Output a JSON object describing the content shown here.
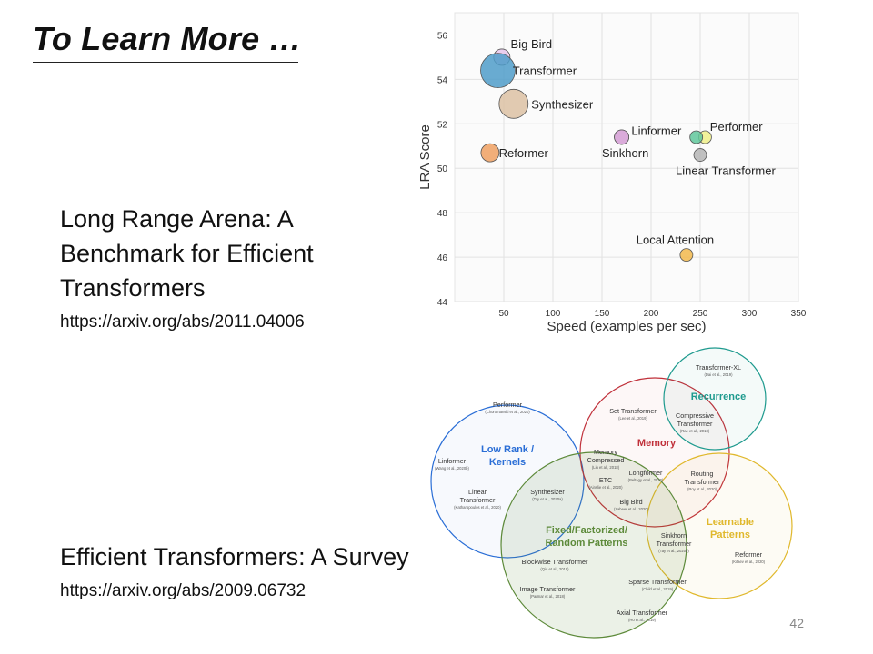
{
  "slide": {
    "title": "To Learn More …",
    "page_number": "42"
  },
  "paper1": {
    "title_lines": [
      "Long Range Arena: A",
      "Benchmark for Efficient",
      "Transformers"
    ],
    "url": "https://arxiv.org/abs/2011.04006"
  },
  "paper2": {
    "title": "Efficient Transformers: A Survey",
    "url": "https://arxiv.org/abs/2009.06732"
  },
  "chart_data": {
    "type": "scatter",
    "xlabel": "Speed (examples per sec)",
    "ylabel": "LRA Score",
    "xlim": [
      0,
      350
    ],
    "ylim": [
      44,
      57
    ],
    "xticks": [
      50,
      100,
      150,
      200,
      250,
      300,
      350
    ],
    "yticks": [
      44,
      46,
      48,
      50,
      52,
      54,
      56
    ],
    "grid": true,
    "points": [
      {
        "name": "Big Bird",
        "x": 48,
        "y": 55.0,
        "size": 9,
        "color": "#e6c7ec"
      },
      {
        "name": "Transformer",
        "x": 44,
        "y": 54.4,
        "size": 19,
        "color": "#4f9cc9"
      },
      {
        "name": "Synthesizer",
        "x": 60,
        "y": 52.9,
        "size": 16,
        "color": "#dcc1a3"
      },
      {
        "name": "Reformer",
        "x": 36,
        "y": 50.7,
        "size": 10,
        "color": "#eea062"
      },
      {
        "name": "Linformer",
        "x": 170,
        "y": 51.4,
        "size": 8,
        "color": "#d9a9d9"
      },
      {
        "name": "Sinkhorn",
        "x": 170,
        "y": 51.4,
        "size": 8,
        "color": "#d9a9d9"
      },
      {
        "name": "Performer",
        "x": 255,
        "y": 51.4,
        "size": 7,
        "color": "#eeee88"
      },
      {
        "name": "Performer",
        "x": 246,
        "y": 51.4,
        "size": 7,
        "color": "#5fc79b"
      },
      {
        "name": "Linear Transformer",
        "x": 250,
        "y": 50.6,
        "size": 7,
        "color": "#b5b5b5"
      },
      {
        "name": "Local Attention",
        "x": 236,
        "y": 46.1,
        "size": 7,
        "color": "#f2b84c"
      }
    ],
    "labels": [
      {
        "text": "Big Bird",
        "x": 57,
        "y": 55.6
      },
      {
        "text": "Transformer",
        "x": 59,
        "y": 54.4
      },
      {
        "text": "Synthesizer",
        "x": 78,
        "y": 52.9
      },
      {
        "text": "Reformer",
        "x": 45,
        "y": 50.7
      },
      {
        "text": "Linformer",
        "x": 180,
        "y": 51.7
      },
      {
        "text": "Sinkhorn",
        "x": 150,
        "y": 50.7
      },
      {
        "text": "Performer",
        "x": 260,
        "y": 51.9
      },
      {
        "text": "Linear Transformer",
        "x": 225,
        "y": 49.9
      },
      {
        "text": "Local Attention",
        "x": 185,
        "y": 46.8
      }
    ]
  },
  "venn": {
    "circles": {
      "low_rank": {
        "title_lines": [
          "Low Rank /",
          "Kernels"
        ],
        "color": "#2a6ed6"
      },
      "memory": {
        "title": "Memory",
        "color": "#c0303a"
      },
      "recurrence": {
        "title": "Recurrence",
        "color": "#1e9a8e"
      },
      "learnable": {
        "title_lines": [
          "Learnable",
          "Patterns"
        ],
        "color": "#e0b82c"
      },
      "fixed": {
        "title_lines": [
          "Fixed/Factorized/",
          "Random Patterns"
        ],
        "color": "#5d8a3a"
      }
    },
    "items": [
      {
        "name": "Performer",
        "cite": "(Choromanski et al., 2020)"
      },
      {
        "name": "Linformer",
        "cite": "(Wang et al., 2020b)"
      },
      {
        "name": "Linear Transformer",
        "cite": "(Katharopoulos et al., 2020)"
      },
      {
        "name": "Synthesizer",
        "cite": "(Tay et al., 2020a)"
      },
      {
        "name": "Set Transformer",
        "cite": "(Lee et al., 2019)"
      },
      {
        "name": "Memory Compressed",
        "cite": "(Liu et al., 2018)"
      },
      {
        "name": "ETC",
        "cite": "(Ainslie et al., 2020)"
      },
      {
        "name": "Longformer",
        "cite": "(Beltagy et al., 2020)"
      },
      {
        "name": "Big Bird",
        "cite": "(Zaheer et al., 2020)"
      },
      {
        "name": "Transformer-XL",
        "cite": "(Dai et al., 2019)"
      },
      {
        "name": "Compressive Transformer",
        "cite": "(Rae et al., 2018)"
      },
      {
        "name": "Routing Transformer",
        "cite": "(Roy et al., 2020)"
      },
      {
        "name": "Sinkhorn Transformer",
        "cite": "(Tay et al., 2020b)"
      },
      {
        "name": "Reformer",
        "cite": "(Kitaev et al., 2020)"
      },
      {
        "name": "Blockwise Transformer",
        "cite": "(Qiu et al., 2019)"
      },
      {
        "name": "Sparse Transformer",
        "cite": "(Child et al., 2019)"
      },
      {
        "name": "Image Transformer",
        "cite": "(Parmar et al., 2018)"
      },
      {
        "name": "Axial Transformer",
        "cite": "(Ho et al., 2019)"
      }
    ]
  }
}
